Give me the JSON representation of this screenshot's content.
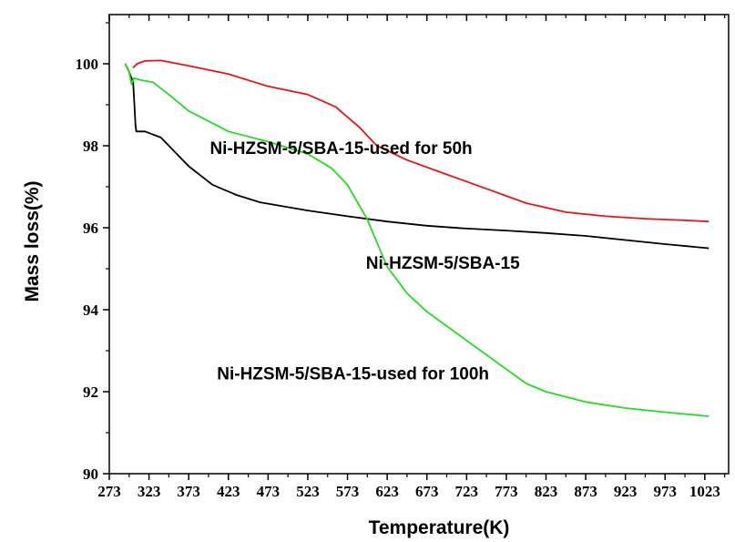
{
  "chart_data": {
    "type": "line",
    "xlabel": "Temperature(K)",
    "ylabel": "Mass loss(%)",
    "xlim": [
      273,
      1053
    ],
    "ylim": [
      90,
      101.2
    ],
    "x_ticks": [
      273,
      323,
      373,
      423,
      473,
      523,
      573,
      623,
      673,
      723,
      773,
      823,
      873,
      923,
      973,
      1023
    ],
    "y_ticks": [
      90,
      92,
      94,
      96,
      98,
      100
    ],
    "grid": false,
    "legend": "none",
    "series": [
      {
        "name": "Ni-HZSM-5/SBA-15-used for 50h",
        "color": "#e8141a",
        "points": [
          [
            303,
            99.9
          ],
          [
            308,
            100.0
          ],
          [
            318,
            100.07
          ],
          [
            338,
            100.08
          ],
          [
            373,
            99.95
          ],
          [
            423,
            99.75
          ],
          [
            473,
            99.45
          ],
          [
            523,
            99.25
          ],
          [
            558,
            98.95
          ],
          [
            588,
            98.45
          ],
          [
            610,
            98.0
          ],
          [
            648,
            97.65
          ],
          [
            698,
            97.3
          ],
          [
            748,
            96.95
          ],
          [
            798,
            96.6
          ],
          [
            848,
            96.38
          ],
          [
            898,
            96.28
          ],
          [
            948,
            96.22
          ],
          [
            998,
            96.18
          ],
          [
            1028,
            96.15
          ]
        ]
      },
      {
        "name": "Ni-HZSM-5/SBA-15",
        "color": "#000000",
        "points": [
          [
            293,
            100.0
          ],
          [
            297,
            99.85
          ],
          [
            303,
            99.55
          ],
          [
            306,
            98.5
          ],
          [
            307,
            98.35
          ],
          [
            318,
            98.35
          ],
          [
            338,
            98.2
          ],
          [
            373,
            97.5
          ],
          [
            403,
            97.05
          ],
          [
            433,
            96.8
          ],
          [
            463,
            96.62
          ],
          [
            523,
            96.42
          ],
          [
            573,
            96.28
          ],
          [
            623,
            96.15
          ],
          [
            673,
            96.05
          ],
          [
            723,
            95.98
          ],
          [
            773,
            95.93
          ],
          [
            823,
            95.87
          ],
          [
            873,
            95.8
          ],
          [
            923,
            95.7
          ],
          [
            973,
            95.6
          ],
          [
            1028,
            95.5
          ]
        ]
      },
      {
        "name": "Ni-HZSM-5/SBA-15-used for 100h",
        "color": "#22dd22",
        "points": [
          [
            293,
            100.0
          ],
          [
            298,
            99.8
          ],
          [
            301,
            99.5
          ],
          [
            304,
            99.65
          ],
          [
            313,
            99.6
          ],
          [
            328,
            99.55
          ],
          [
            348,
            99.25
          ],
          [
            373,
            98.85
          ],
          [
            423,
            98.35
          ],
          [
            473,
            98.1
          ],
          [
            523,
            97.8
          ],
          [
            553,
            97.45
          ],
          [
            573,
            97.05
          ],
          [
            598,
            96.2
          ],
          [
            623,
            95.05
          ],
          [
            648,
            94.4
          ],
          [
            673,
            93.95
          ],
          [
            723,
            93.25
          ],
          [
            773,
            92.55
          ],
          [
            798,
            92.2
          ],
          [
            823,
            92.0
          ],
          [
            873,
            91.75
          ],
          [
            923,
            91.6
          ],
          [
            973,
            91.5
          ],
          [
            1028,
            91.4
          ]
        ]
      }
    ],
    "annotations": [
      {
        "text": "Ni-HZSM-5/SBA-15-used for 50h",
        "x": 565,
        "y": 97.8
      },
      {
        "text": "Ni-HZSM-5/SBA-15",
        "x": 790,
        "y": 95.0
      },
      {
        "text": "Ni-HZSM-5/SBA-15-used for 100h",
        "x": 580,
        "y": 92.3
      }
    ]
  }
}
